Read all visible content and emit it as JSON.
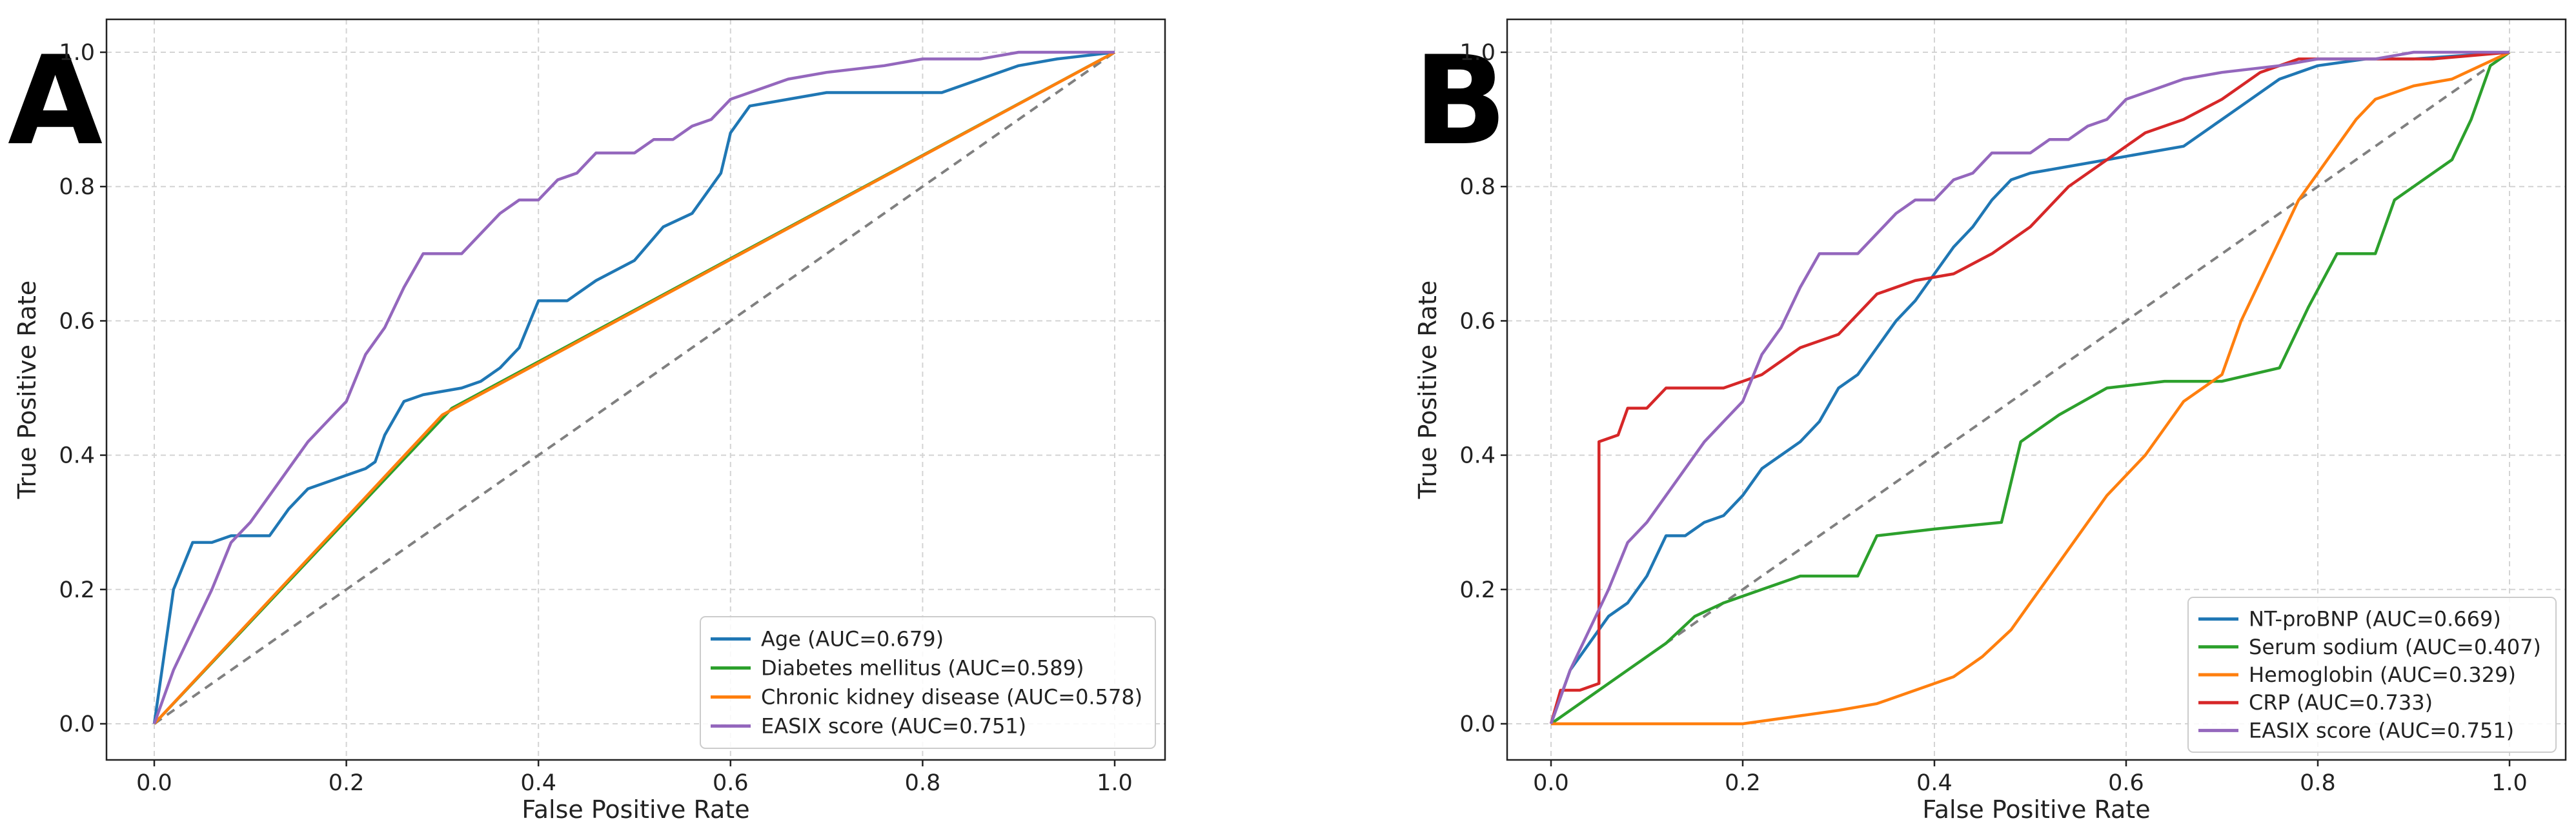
{
  "chart_data": [
    {
      "type": "line",
      "panel_label": "A",
      "xlabel": "False Positive Rate",
      "ylabel": "True Positive Rate",
      "xlim": [
        0,
        1
      ],
      "ylim": [
        0,
        1
      ],
      "x_ticks": [
        "0.0",
        "0.2",
        "0.4",
        "0.6",
        "0.8",
        "1.0"
      ],
      "y_ticks": [
        "0.0",
        "0.2",
        "0.4",
        "0.6",
        "0.8",
        "1.0"
      ],
      "grid": true,
      "legend_position": "bottom-right",
      "reference_line": {
        "style": "dashed",
        "color": "#808080",
        "points": [
          [
            0,
            0
          ],
          [
            1,
            1
          ]
        ]
      },
      "series": [
        {
          "name": "Age (AUC=0.679)",
          "color": "#1f77b4",
          "points": [
            [
              0,
              0
            ],
            [
              0.01,
              0.1
            ],
            [
              0.02,
              0.2
            ],
            [
              0.04,
              0.27
            ],
            [
              0.06,
              0.27
            ],
            [
              0.08,
              0.28
            ],
            [
              0.12,
              0.28
            ],
            [
              0.14,
              0.32
            ],
            [
              0.16,
              0.35
            ],
            [
              0.2,
              0.37
            ],
            [
              0.22,
              0.38
            ],
            [
              0.23,
              0.39
            ],
            [
              0.24,
              0.43
            ],
            [
              0.26,
              0.48
            ],
            [
              0.28,
              0.49
            ],
            [
              0.32,
              0.5
            ],
            [
              0.34,
              0.51
            ],
            [
              0.36,
              0.53
            ],
            [
              0.38,
              0.56
            ],
            [
              0.4,
              0.63
            ],
            [
              0.43,
              0.63
            ],
            [
              0.46,
              0.66
            ],
            [
              0.5,
              0.69
            ],
            [
              0.53,
              0.74
            ],
            [
              0.56,
              0.76
            ],
            [
              0.59,
              0.82
            ],
            [
              0.6,
              0.88
            ],
            [
              0.62,
              0.92
            ],
            [
              0.66,
              0.93
            ],
            [
              0.7,
              0.94
            ],
            [
              0.75,
              0.94
            ],
            [
              0.82,
              0.94
            ],
            [
              0.86,
              0.96
            ],
            [
              0.9,
              0.98
            ],
            [
              0.94,
              0.99
            ],
            [
              1,
              1
            ]
          ]
        },
        {
          "name": "Diabetes mellitus (AUC=0.589)",
          "color": "#2ca02c",
          "points": [
            [
              0,
              0
            ],
            [
              0.31,
              0.47
            ],
            [
              1,
              1
            ]
          ]
        },
        {
          "name": "Chronic kidney disease (AUC=0.578)",
          "color": "#ff7f0e",
          "points": [
            [
              0,
              0
            ],
            [
              0.3,
              0.46
            ],
            [
              1,
              1
            ]
          ]
        },
        {
          "name": "EASIX score (AUC=0.751)",
          "color": "#9467bd",
          "points": [
            [
              0,
              0
            ],
            [
              0.02,
              0.08
            ],
            [
              0.04,
              0.14
            ],
            [
              0.06,
              0.2
            ],
            [
              0.08,
              0.27
            ],
            [
              0.1,
              0.3
            ],
            [
              0.12,
              0.34
            ],
            [
              0.14,
              0.38
            ],
            [
              0.16,
              0.42
            ],
            [
              0.18,
              0.45
            ],
            [
              0.2,
              0.48
            ],
            [
              0.22,
              0.55
            ],
            [
              0.24,
              0.59
            ],
            [
              0.26,
              0.65
            ],
            [
              0.28,
              0.7
            ],
            [
              0.3,
              0.7
            ],
            [
              0.32,
              0.7
            ],
            [
              0.34,
              0.73
            ],
            [
              0.36,
              0.76
            ],
            [
              0.38,
              0.78
            ],
            [
              0.4,
              0.78
            ],
            [
              0.42,
              0.81
            ],
            [
              0.44,
              0.82
            ],
            [
              0.46,
              0.85
            ],
            [
              0.5,
              0.85
            ],
            [
              0.52,
              0.87
            ],
            [
              0.54,
              0.87
            ],
            [
              0.56,
              0.89
            ],
            [
              0.58,
              0.9
            ],
            [
              0.6,
              0.93
            ],
            [
              0.62,
              0.94
            ],
            [
              0.64,
              0.95
            ],
            [
              0.66,
              0.96
            ],
            [
              0.7,
              0.97
            ],
            [
              0.76,
              0.98
            ],
            [
              0.8,
              0.99
            ],
            [
              0.86,
              0.99
            ],
            [
              0.9,
              1.0
            ],
            [
              1,
              1
            ]
          ]
        }
      ]
    },
    {
      "type": "line",
      "panel_label": "B",
      "xlabel": "False Positive Rate",
      "ylabel": "True Positive Rate",
      "xlim": [
        0,
        1
      ],
      "ylim": [
        0,
        1
      ],
      "x_ticks": [
        "0.0",
        "0.2",
        "0.4",
        "0.6",
        "0.8",
        "1.0"
      ],
      "y_ticks": [
        "0.0",
        "0.2",
        "0.4",
        "0.6",
        "0.8",
        "1.0"
      ],
      "grid": true,
      "legend_position": "bottom-right",
      "reference_line": {
        "style": "dashed",
        "color": "#808080",
        "points": [
          [
            0,
            0
          ],
          [
            1,
            1
          ]
        ]
      },
      "series": [
        {
          "name": "NT-proBNP (AUC=0.669)",
          "color": "#1f77b4",
          "points": [
            [
              0,
              0
            ],
            [
              0.01,
              0.04
            ],
            [
              0.02,
              0.08
            ],
            [
              0.04,
              0.12
            ],
            [
              0.06,
              0.16
            ],
            [
              0.08,
              0.18
            ],
            [
              0.1,
              0.22
            ],
            [
              0.12,
              0.28
            ],
            [
              0.14,
              0.28
            ],
            [
              0.16,
              0.3
            ],
            [
              0.18,
              0.31
            ],
            [
              0.2,
              0.34
            ],
            [
              0.22,
              0.38
            ],
            [
              0.24,
              0.4
            ],
            [
              0.26,
              0.42
            ],
            [
              0.28,
              0.45
            ],
            [
              0.3,
              0.5
            ],
            [
              0.32,
              0.52
            ],
            [
              0.34,
              0.56
            ],
            [
              0.36,
              0.6
            ],
            [
              0.38,
              0.63
            ],
            [
              0.4,
              0.67
            ],
            [
              0.42,
              0.71
            ],
            [
              0.44,
              0.74
            ],
            [
              0.46,
              0.78
            ],
            [
              0.48,
              0.81
            ],
            [
              0.5,
              0.82
            ],
            [
              0.54,
              0.83
            ],
            [
              0.58,
              0.84
            ],
            [
              0.62,
              0.85
            ],
            [
              0.66,
              0.86
            ],
            [
              0.7,
              0.9
            ],
            [
              0.72,
              0.92
            ],
            [
              0.76,
              0.96
            ],
            [
              0.8,
              0.98
            ],
            [
              0.85,
              0.99
            ],
            [
              0.9,
              0.99
            ],
            [
              1,
              1
            ]
          ]
        },
        {
          "name": "Serum sodium (AUC=0.407)",
          "color": "#2ca02c",
          "points": [
            [
              0,
              0
            ],
            [
              0.02,
              0.02
            ],
            [
              0.04,
              0.04
            ],
            [
              0.08,
              0.08
            ],
            [
              0.12,
              0.12
            ],
            [
              0.15,
              0.16
            ],
            [
              0.18,
              0.18
            ],
            [
              0.22,
              0.2
            ],
            [
              0.26,
              0.22
            ],
            [
              0.32,
              0.22
            ],
            [
              0.34,
              0.28
            ],
            [
              0.4,
              0.29
            ],
            [
              0.47,
              0.3
            ],
            [
              0.49,
              0.42
            ],
            [
              0.53,
              0.46
            ],
            [
              0.58,
              0.5
            ],
            [
              0.64,
              0.51
            ],
            [
              0.7,
              0.51
            ],
            [
              0.76,
              0.53
            ],
            [
              0.79,
              0.62
            ],
            [
              0.82,
              0.7
            ],
            [
              0.86,
              0.7
            ],
            [
              0.88,
              0.78
            ],
            [
              0.9,
              0.8
            ],
            [
              0.94,
              0.84
            ],
            [
              0.96,
              0.9
            ],
            [
              0.98,
              0.98
            ],
            [
              1,
              1
            ]
          ]
        },
        {
          "name": "Hemoglobin (AUC=0.329)",
          "color": "#ff7f0e",
          "points": [
            [
              0,
              0
            ],
            [
              0.1,
              0
            ],
            [
              0.2,
              0
            ],
            [
              0.25,
              0.01
            ],
            [
              0.3,
              0.02
            ],
            [
              0.34,
              0.03
            ],
            [
              0.38,
              0.05
            ],
            [
              0.42,
              0.07
            ],
            [
              0.45,
              0.1
            ],
            [
              0.48,
              0.14
            ],
            [
              0.5,
              0.18
            ],
            [
              0.52,
              0.22
            ],
            [
              0.54,
              0.26
            ],
            [
              0.56,
              0.3
            ],
            [
              0.58,
              0.34
            ],
            [
              0.6,
              0.37
            ],
            [
              0.62,
              0.4
            ],
            [
              0.64,
              0.44
            ],
            [
              0.66,
              0.48
            ],
            [
              0.68,
              0.5
            ],
            [
              0.7,
              0.52
            ],
            [
              0.72,
              0.6
            ],
            [
              0.74,
              0.66
            ],
            [
              0.76,
              0.72
            ],
            [
              0.78,
              0.78
            ],
            [
              0.8,
              0.82
            ],
            [
              0.82,
              0.86
            ],
            [
              0.84,
              0.9
            ],
            [
              0.86,
              0.93
            ],
            [
              0.9,
              0.95
            ],
            [
              0.94,
              0.96
            ],
            [
              0.97,
              0.98
            ],
            [
              1,
              1
            ]
          ]
        },
        {
          "name": "CRP (AUC=0.733)",
          "color": "#d62728",
          "points": [
            [
              0,
              0
            ],
            [
              0.01,
              0.05
            ],
            [
              0.03,
              0.05
            ],
            [
              0.05,
              0.06
            ],
            [
              0.05,
              0.42
            ],
            [
              0.07,
              0.43
            ],
            [
              0.08,
              0.47
            ],
            [
              0.1,
              0.47
            ],
            [
              0.12,
              0.5
            ],
            [
              0.18,
              0.5
            ],
            [
              0.22,
              0.52
            ],
            [
              0.24,
              0.54
            ],
            [
              0.26,
              0.56
            ],
            [
              0.3,
              0.58
            ],
            [
              0.34,
              0.64
            ],
            [
              0.38,
              0.66
            ],
            [
              0.42,
              0.67
            ],
            [
              0.46,
              0.7
            ],
            [
              0.5,
              0.74
            ],
            [
              0.54,
              0.8
            ],
            [
              0.58,
              0.84
            ],
            [
              0.62,
              0.88
            ],
            [
              0.66,
              0.9
            ],
            [
              0.7,
              0.93
            ],
            [
              0.74,
              0.97
            ],
            [
              0.78,
              0.99
            ],
            [
              0.85,
              0.99
            ],
            [
              0.92,
              0.99
            ],
            [
              1,
              1
            ]
          ]
        },
        {
          "name": "EASIX score (AUC=0.751)",
          "color": "#9467bd",
          "points": [
            [
              0,
              0
            ],
            [
              0.02,
              0.08
            ],
            [
              0.04,
              0.14
            ],
            [
              0.06,
              0.2
            ],
            [
              0.08,
              0.27
            ],
            [
              0.1,
              0.3
            ],
            [
              0.12,
              0.34
            ],
            [
              0.14,
              0.38
            ],
            [
              0.16,
              0.42
            ],
            [
              0.18,
              0.45
            ],
            [
              0.2,
              0.48
            ],
            [
              0.22,
              0.55
            ],
            [
              0.24,
              0.59
            ],
            [
              0.26,
              0.65
            ],
            [
              0.28,
              0.7
            ],
            [
              0.3,
              0.7
            ],
            [
              0.32,
              0.7
            ],
            [
              0.34,
              0.73
            ],
            [
              0.36,
              0.76
            ],
            [
              0.38,
              0.78
            ],
            [
              0.4,
              0.78
            ],
            [
              0.42,
              0.81
            ],
            [
              0.44,
              0.82
            ],
            [
              0.46,
              0.85
            ],
            [
              0.5,
              0.85
            ],
            [
              0.52,
              0.87
            ],
            [
              0.54,
              0.87
            ],
            [
              0.56,
              0.89
            ],
            [
              0.58,
              0.9
            ],
            [
              0.6,
              0.93
            ],
            [
              0.62,
              0.94
            ],
            [
              0.64,
              0.95
            ],
            [
              0.66,
              0.96
            ],
            [
              0.7,
              0.97
            ],
            [
              0.76,
              0.98
            ],
            [
              0.8,
              0.99
            ],
            [
              0.86,
              0.99
            ],
            [
              0.9,
              1.0
            ],
            [
              1,
              1
            ]
          ]
        }
      ]
    }
  ]
}
